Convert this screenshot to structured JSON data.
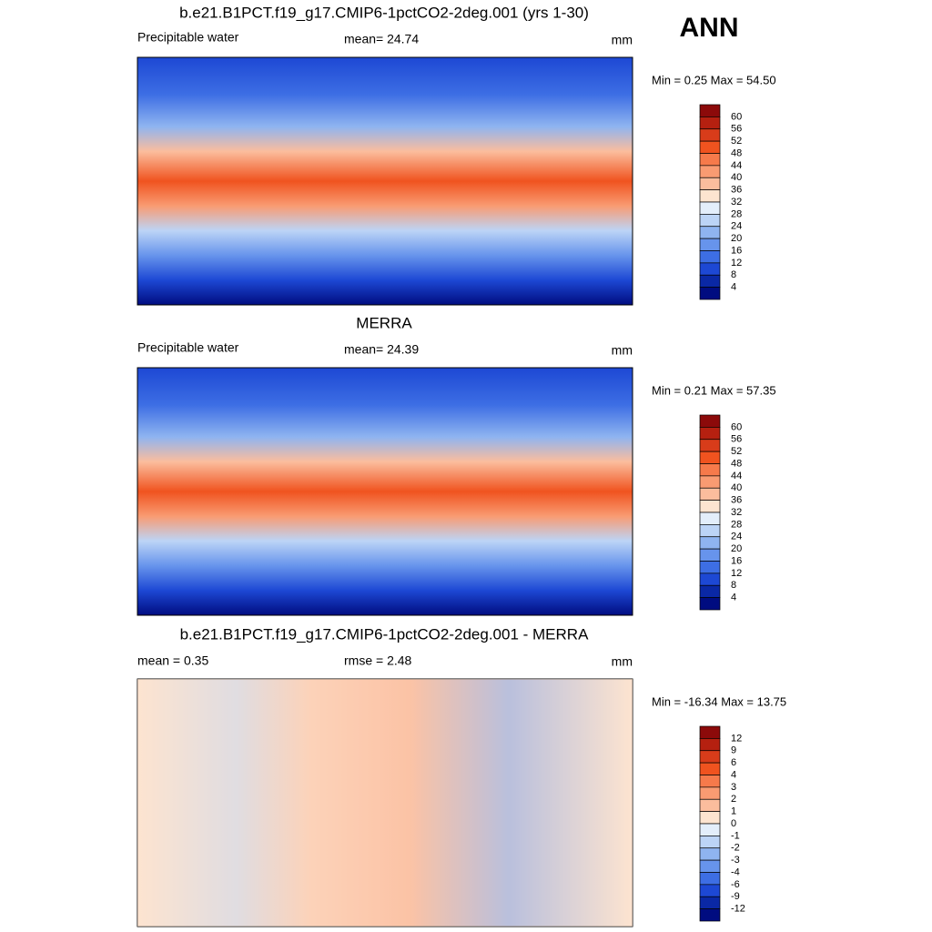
{
  "header": {
    "season": "ANN"
  },
  "panels": [
    {
      "title": "b.e21.B1PCT.f19_g17.CMIP6-1pctCO2-2deg.001 (yrs 1-30)",
      "left": "Precipitable water",
      "center": "mean=  24.74",
      "units": "mm",
      "minmax": "Min =   0.25 Max =  54.50",
      "colorbar": {
        "levels": [
          60,
          56,
          52,
          48,
          44,
          40,
          36,
          32,
          28,
          24,
          20,
          16,
          12,
          8,
          4
        ],
        "colors": [
          "#8c0a0a",
          "#b52010",
          "#d83c1a",
          "#f0531f",
          "#f67a4b",
          "#f99b72",
          "#fbbd9d",
          "#fde4d0",
          "#e3eefb",
          "#bcd4f6",
          "#8fb4f0",
          "#6794ec",
          "#3d6ee4",
          "#1d48d4",
          "#0a28a5",
          "#000c80"
        ]
      }
    },
    {
      "title": "MERRA",
      "left": "Precipitable water",
      "center": "mean=  24.39",
      "units": "mm",
      "minmax": "Min =   0.21 Max =  57.35",
      "colorbar": {
        "levels": [
          60,
          56,
          52,
          48,
          44,
          40,
          36,
          32,
          28,
          24,
          20,
          16,
          12,
          8,
          4
        ],
        "colors": [
          "#8c0a0a",
          "#b52010",
          "#d83c1a",
          "#f0531f",
          "#f67a4b",
          "#f99b72",
          "#fbbd9d",
          "#fde4d0",
          "#e3eefb",
          "#bcd4f6",
          "#8fb4f0",
          "#6794ec",
          "#3d6ee4",
          "#1d48d4",
          "#0a28a5",
          "#000c80"
        ]
      }
    },
    {
      "title": "b.e21.B1PCT.f19_g17.CMIP6-1pctCO2-2deg.001 - MERRA",
      "left": "mean =   0.35",
      "center": "rmse =   2.48",
      "units": "mm",
      "minmax": "Min = -16.34 Max =  13.75",
      "colorbar": {
        "levels": [
          12,
          9,
          6,
          4,
          3,
          2,
          1,
          0,
          -1,
          -2,
          -3,
          -4,
          -6,
          -9,
          -12
        ],
        "colors": [
          "#8c0a0a",
          "#b52010",
          "#d83c1a",
          "#f0531f",
          "#f67a4b",
          "#f99b72",
          "#fbbd9d",
          "#fde4d0",
          "#e3eefb",
          "#bcd4f6",
          "#8fb4f0",
          "#6794ec",
          "#3d6ee4",
          "#1d48d4",
          "#0a28a5",
          "#000c80"
        ]
      }
    }
  ]
}
